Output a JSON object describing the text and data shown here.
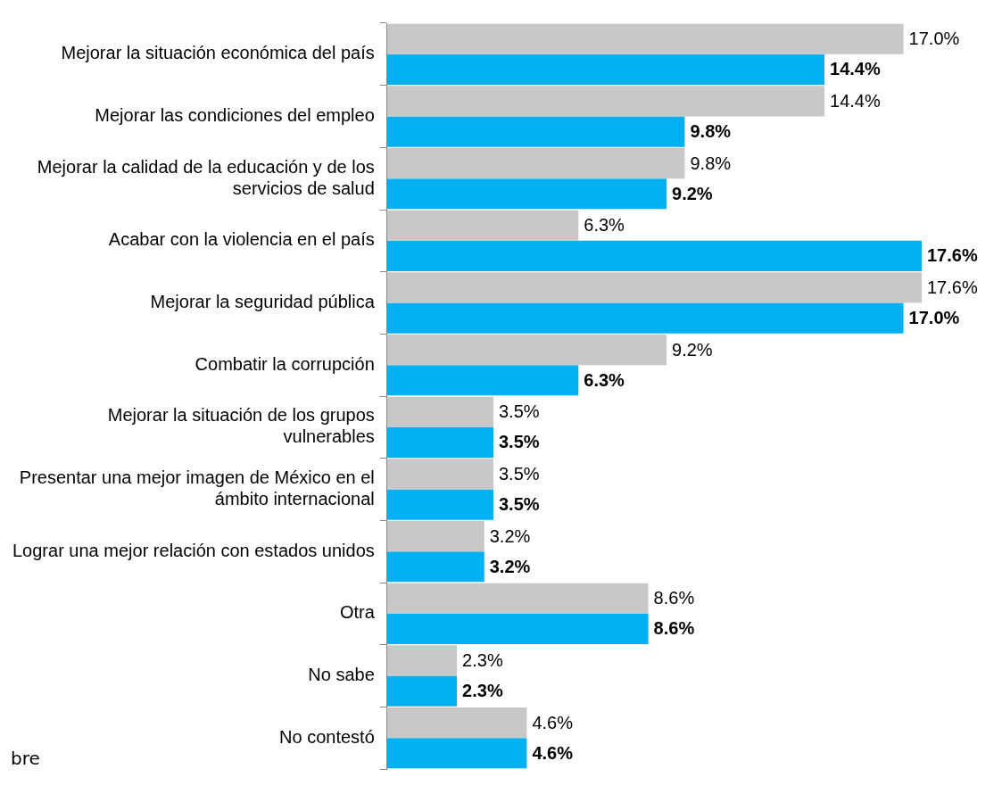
{
  "chart_data": {
    "type": "bar",
    "orientation": "horizontal",
    "categories": [
      "Mejorar la situación económica del país",
      "Mejorar las condiciones del empleo",
      "Mejorar la calidad de la educación y de los\nservicios de salud",
      "Acabar con la violencia en el país",
      "Mejorar la seguridad pública",
      "Combatir la corrupción",
      "Mejorar la situación de los grupos\nvulnerables",
      "Presentar una mejor imagen de México en el\námbito internacional",
      "Lograr una mejor relación con estados unidos",
      "Otra",
      "No sabe",
      "No contestó"
    ],
    "series": [
      {
        "color": "#c8c8c8",
        "values": [
          17.0,
          14.4,
          9.8,
          6.3,
          17.6,
          9.2,
          3.5,
          3.5,
          3.2,
          8.6,
          2.3,
          4.6
        ],
        "value_labels": [
          "17.0%",
          "14.4%",
          "9.8%",
          "6.3%",
          "17.6%",
          "9.2%",
          "3.5%",
          "3.5%",
          "3.2%",
          "8.6%",
          "2.3%",
          "4.6%"
        ]
      },
      {
        "color": "#00b0f0",
        "values": [
          14.4,
          9.8,
          9.2,
          17.6,
          17.0,
          6.3,
          3.5,
          3.5,
          3.2,
          8.6,
          2.3,
          4.6
        ],
        "value_labels": [
          "14.4%",
          "9.8%",
          "9.2%",
          "17.6%",
          "17.0%",
          "6.3%",
          "3.5%",
          "3.5%",
          "3.2%",
          "8.6%",
          "2.3%",
          "4.6%"
        ]
      }
    ],
    "xlim": [
      0,
      17.6
    ],
    "tick_labels": "y",
    "grid": false,
    "legend": false,
    "annotations": [
      "bre"
    ]
  }
}
